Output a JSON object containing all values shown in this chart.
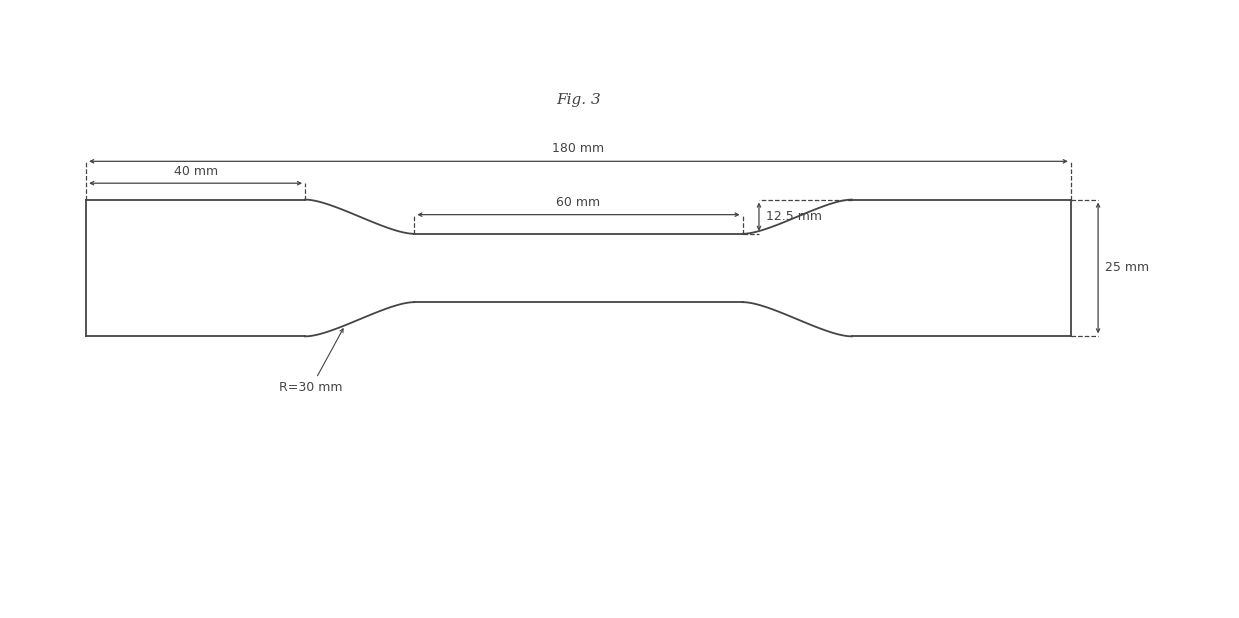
{
  "title": "Fig. 3",
  "label_180": "180 mm",
  "label_40": "40 mm",
  "label_60": "60 mm",
  "label_125": "12.5 mm",
  "label_25": "25 mm",
  "label_R": "R=30 mm",
  "line_color": "#444444",
  "bg_color": "#ffffff",
  "fig_width": 12.39,
  "fig_height": 6.18,
  "dpi": 100,
  "xlim": [
    -15,
    210
  ],
  "ylim": [
    -45,
    55
  ]
}
